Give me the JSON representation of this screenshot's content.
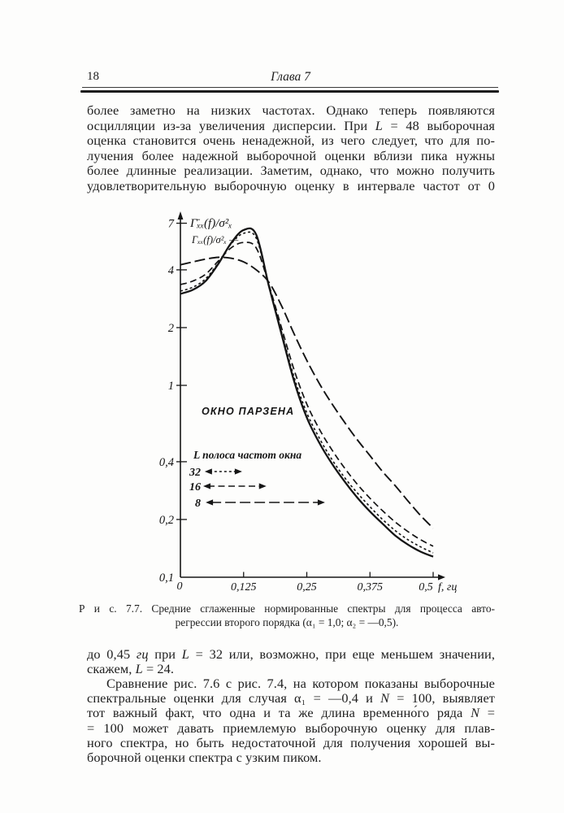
{
  "page": {
    "number": "18",
    "chapter": "Глава 7"
  },
  "paragraph_top": {
    "lines": [
      "более заметно на низких частотах. Однако теперь появляются",
      "осцилляции из-за увеличения дисперсии. При <i>L</i> = 48 выборочная",
      "оценка становится очень ненадежной, из чего следует, что для по-",
      "лучения более надежной выборочной оценки вблизи пика нужны",
      "более длинные реализации. Заметим, однако, что можно получить",
      "удовлетворительную выборочную оценку в интервале частот от 0"
    ]
  },
  "figure": {
    "y_axis_label_smoothed": "Γ̄ₓₓ(f)/σ²ₓ",
    "y_axis_label_theoretical": "Γₓₓ(f)/σ²ₓ —",
    "window_label": "ОКНО ПАРЗЕНА",
    "legend_title": "L полоса частот окна",
    "origin_label": "0",
    "x_axis_unit": "f, гц",
    "legend_rows": [
      {
        "label": "32",
        "from": 0.048,
        "to": 0.122,
        "dash": "3,3"
      },
      {
        "label": "16",
        "from": 0.045,
        "to": 0.17,
        "dash": "8,4.5"
      },
      {
        "label": "8",
        "from": 0.05,
        "to": 0.286,
        "dash": "13,5"
      }
    ]
  },
  "chart_data": {
    "type": "line",
    "title": "Средние сглаженные нормированные спектры для процесса авторегрессии второго порядка (α₁ = 1,0; α₂ = −0,5)",
    "xlabel": "f, гц",
    "ylabel": "Γ̄ₓₓ(f)/σ²ₓ",
    "x_scale": "linear",
    "y_scale": "log",
    "xlim": [
      0,
      0.5
    ],
    "ylim": [
      0.1,
      7
    ],
    "x_ticks": [
      {
        "v": 0.125,
        "label": "0,125"
      },
      {
        "v": 0.25,
        "label": "0,25"
      },
      {
        "v": 0.375,
        "label": "0,375"
      },
      {
        "v": 0.5,
        "label": "0,5",
        "dx": -9
      }
    ],
    "y_ticks": [
      {
        "v": 7,
        "label": "7"
      },
      {
        "v": 4,
        "label": "4"
      },
      {
        "v": 2,
        "label": "2"
      },
      {
        "v": 1,
        "label": "1"
      },
      {
        "v": 0.4,
        "label": "0,4"
      },
      {
        "v": 0.2,
        "label": "0,2"
      },
      {
        "v": 0.1,
        "label": "0,1"
      }
    ],
    "x": [
      0,
      0.025,
      0.05,
      0.075,
      0.1,
      0.125,
      0.15,
      0.175,
      0.2,
      0.225,
      0.25,
      0.275,
      0.3,
      0.325,
      0.35,
      0.375,
      0.4,
      0.425,
      0.45,
      0.475,
      0.5
    ],
    "series": [
      {
        "id": "L8",
        "name": "сглаженный спектр, L = 8",
        "dash": "13,5",
        "width": 1.9,
        "values": [
          4.25,
          4.4,
          4.55,
          4.65,
          4.6,
          4.4,
          4.0,
          3.45,
          2.6,
          1.85,
          1.35,
          1.02,
          0.8,
          0.64,
          0.52,
          0.43,
          0.355,
          0.3,
          0.25,
          0.21,
          0.18
        ]
      },
      {
        "id": "L16",
        "name": "сглаженный спектр, L = 16",
        "dash": "8,4.5",
        "width": 1.7,
        "values": [
          3.35,
          3.5,
          3.8,
          4.45,
          5.2,
          5.55,
          5.2,
          3.35,
          2.0,
          1.2,
          0.8,
          0.59,
          0.46,
          0.37,
          0.305,
          0.258,
          0.222,
          0.194,
          0.173,
          0.157,
          0.145
        ]
      },
      {
        "id": "L32",
        "name": "сглаженный спектр, L = 32",
        "dash": "3,3",
        "width": 1.6,
        "values": [
          3.1,
          3.25,
          3.6,
          4.35,
          5.45,
          6.2,
          5.85,
          3.3,
          1.9,
          1.1,
          0.72,
          0.53,
          0.41,
          0.33,
          0.275,
          0.233,
          0.2,
          0.175,
          0.157,
          0.144,
          0.134
        ]
      },
      {
        "id": "theor",
        "name": "теоретический спектр Γₓₓ(f)/σ²ₓ",
        "dash": "",
        "width": 2.3,
        "values": [
          3.0,
          3.15,
          3.5,
          4.3,
          5.5,
          6.45,
          6.1,
          3.3,
          1.85,
          1.05,
          0.68,
          0.5,
          0.39,
          0.315,
          0.26,
          0.22,
          0.19,
          0.165,
          0.148,
          0.136,
          0.128
        ]
      }
    ]
  },
  "caption": {
    "line1": "Р и с. 7.7. Средние сглаженные нормированные спектры для процесса авто-",
    "line2": "регрессии второго порядка (α₁ = 1,0;  α₂ = —0,5)."
  },
  "paragraph_mid": {
    "lines": [
      "до 0,45 <i>гц</i> при <i>L</i> = 32 или, возможно, при еще меньшем значении,",
      "скажем, <i>L</i> = 24."
    ]
  },
  "paragraph_bottom": {
    "lines": [
      "Сравнение рис. 7.6 с рис. 7.4, на котором показаны выборочные",
      "спектральные оценки для случая α₁ = —0,4 и <i>N</i> = 100, выявляет",
      "тот важный факт, что одна и та же длина временно́го ряда <i>N</i> =",
      "= 100 может давать приемлемую выборочную оценку для плав-",
      "ного спектра, но быть недостаточной для получения хорошей вы-",
      "борочной оценки спектра с узким пиком."
    ]
  }
}
